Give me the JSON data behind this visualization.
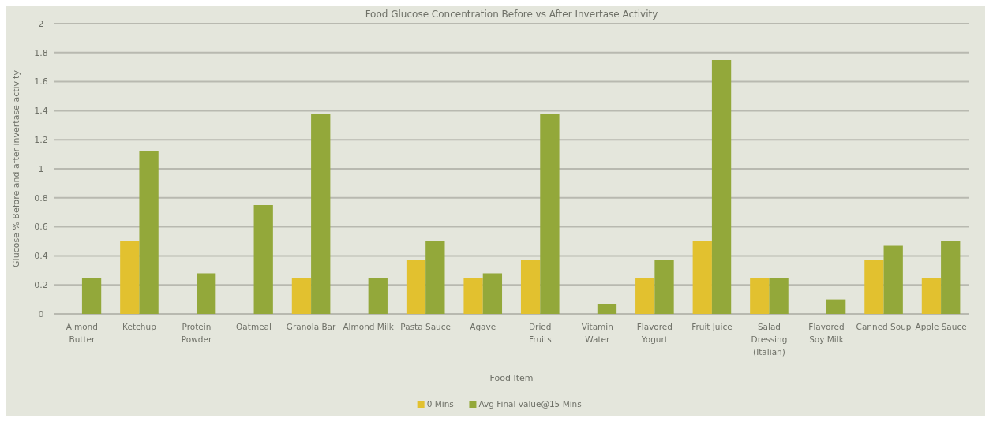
{
  "chart_data": {
    "type": "bar",
    "title": "Food Glucose Concentration Before vs After Invertase Activity",
    "xlabel": "Food Item",
    "ylabel": "Glucose % Before and after invertase activity",
    "categories": [
      "Almond Butter",
      "Ketchup",
      "Protein Powder",
      "Oatmeal",
      "Granola Bar",
      "Almond Milk",
      "Pasta Sauce",
      "Agave",
      "Dried Fruits",
      "Vitamin Water",
      "Flavored Yogurt",
      "Fruit Juice",
      "Salad Dressing (Italian)",
      "Flavored Soy Milk",
      "Canned Soup",
      "Apple Sauce"
    ],
    "series": [
      {
        "name": "0 Mins",
        "color": "#e2c12f",
        "values": [
          0,
          0.5,
          0,
          0,
          0.25,
          0,
          0.375,
          0.25,
          0.375,
          0,
          0.25,
          0.5,
          0.25,
          0,
          0.375,
          0.25
        ]
      },
      {
        "name": "Avg Final value@15 Mins",
        "color": "#93a83a",
        "values": [
          0.25,
          1.125,
          0.28,
          0.75,
          1.375,
          0.25,
          0.5,
          0.28,
          1.375,
          0.07,
          0.375,
          1.75,
          0.25,
          0.1,
          0.47,
          0.5
        ]
      }
    ],
    "ylim": [
      0,
      2
    ],
    "yticks": [
      0,
      {
        "value": 0.2,
        "label": "0.2"
      },
      {
        "value": 0.4,
        "label": "0.4"
      },
      {
        "value": 0.6,
        "label": "0.6"
      },
      {
        "value": 0.8,
        "label": "0.8"
      },
      1,
      {
        "value": 1.2,
        "label": "1.2"
      },
      {
        "value": 1.4,
        "label": "1.4"
      },
      {
        "value": 1.6,
        "label": "1.6"
      },
      {
        "value": 1.8,
        "label": "1.8"
      },
      2
    ],
    "grid": "y",
    "legend": "bottom"
  }
}
